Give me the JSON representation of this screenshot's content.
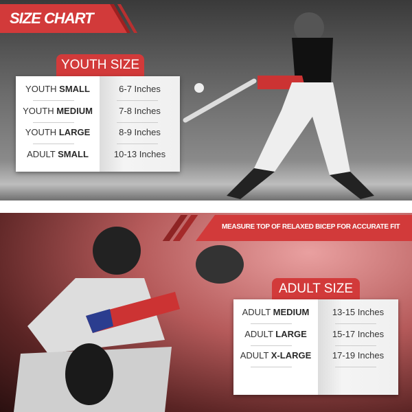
{
  "header": {
    "title": "SIZE CHART"
  },
  "instruction": "MEASURE TOP OF RELAXED BICEP FOR ACCURATE FIT",
  "youth": {
    "title": "YOUTH SIZE",
    "rows": [
      {
        "prefix": "YOUTH ",
        "bold": "SMALL",
        "size": "6-7 Inches"
      },
      {
        "prefix": "YOUTH ",
        "bold": "MEDIUM",
        "size": "7-8 Inches"
      },
      {
        "prefix": "YOUTH ",
        "bold": "LARGE",
        "size": "8-9 Inches"
      },
      {
        "prefix": "ADULT ",
        "bold": "SMALL",
        "size": "10-13 Inches"
      }
    ]
  },
  "adult": {
    "title": "ADULT SIZE",
    "rows": [
      {
        "prefix": "ADULT ",
        "bold": "MEDIUM",
        "size": "13-15 Inches"
      },
      {
        "prefix": "ADULT ",
        "bold": "LARGE",
        "size": "15-17 Inches"
      },
      {
        "prefix": "ADULT ",
        "bold": "X-LARGE",
        "size": "17-19 Inches"
      }
    ]
  },
  "colors": {
    "accent": "#d23a3a"
  }
}
